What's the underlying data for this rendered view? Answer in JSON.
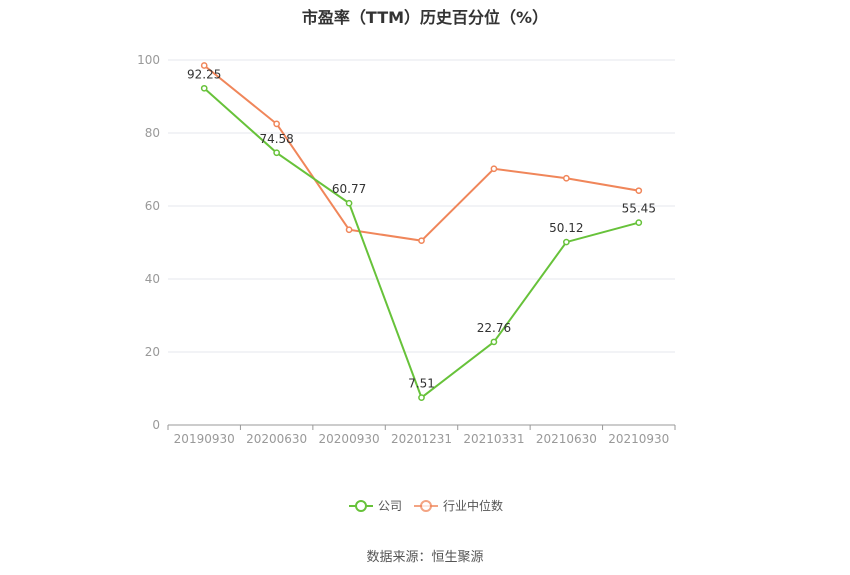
{
  "title": "市盈率（TTM）历史百分位（%）",
  "source": "数据来源：恒生聚源",
  "chart_data": {
    "type": "line",
    "title": "市盈率（TTM）历史百分位（%）",
    "categories": [
      "20190930",
      "20200630",
      "20200930",
      "20201231",
      "20210331",
      "20210630",
      "20210930"
    ],
    "ylim": [
      0,
      100
    ],
    "yticks": [
      0,
      20,
      40,
      60,
      80,
      100
    ],
    "grid": true,
    "legend_position": "bottom",
    "series": [
      {
        "name": "公司",
        "color": "#67c23a",
        "values": [
          92.25,
          74.58,
          60.77,
          7.51,
          22.76,
          50.12,
          55.45
        ],
        "labels": [
          "92.25",
          "74.58",
          "60.77",
          "7.51",
          "22.76",
          "50.12",
          "55.45"
        ]
      },
      {
        "name": "行业中位数",
        "color": "#f0865a",
        "values": [
          98.5,
          82.5,
          53.5,
          50.5,
          70.2,
          67.6,
          64.2
        ],
        "labels": []
      }
    ]
  }
}
